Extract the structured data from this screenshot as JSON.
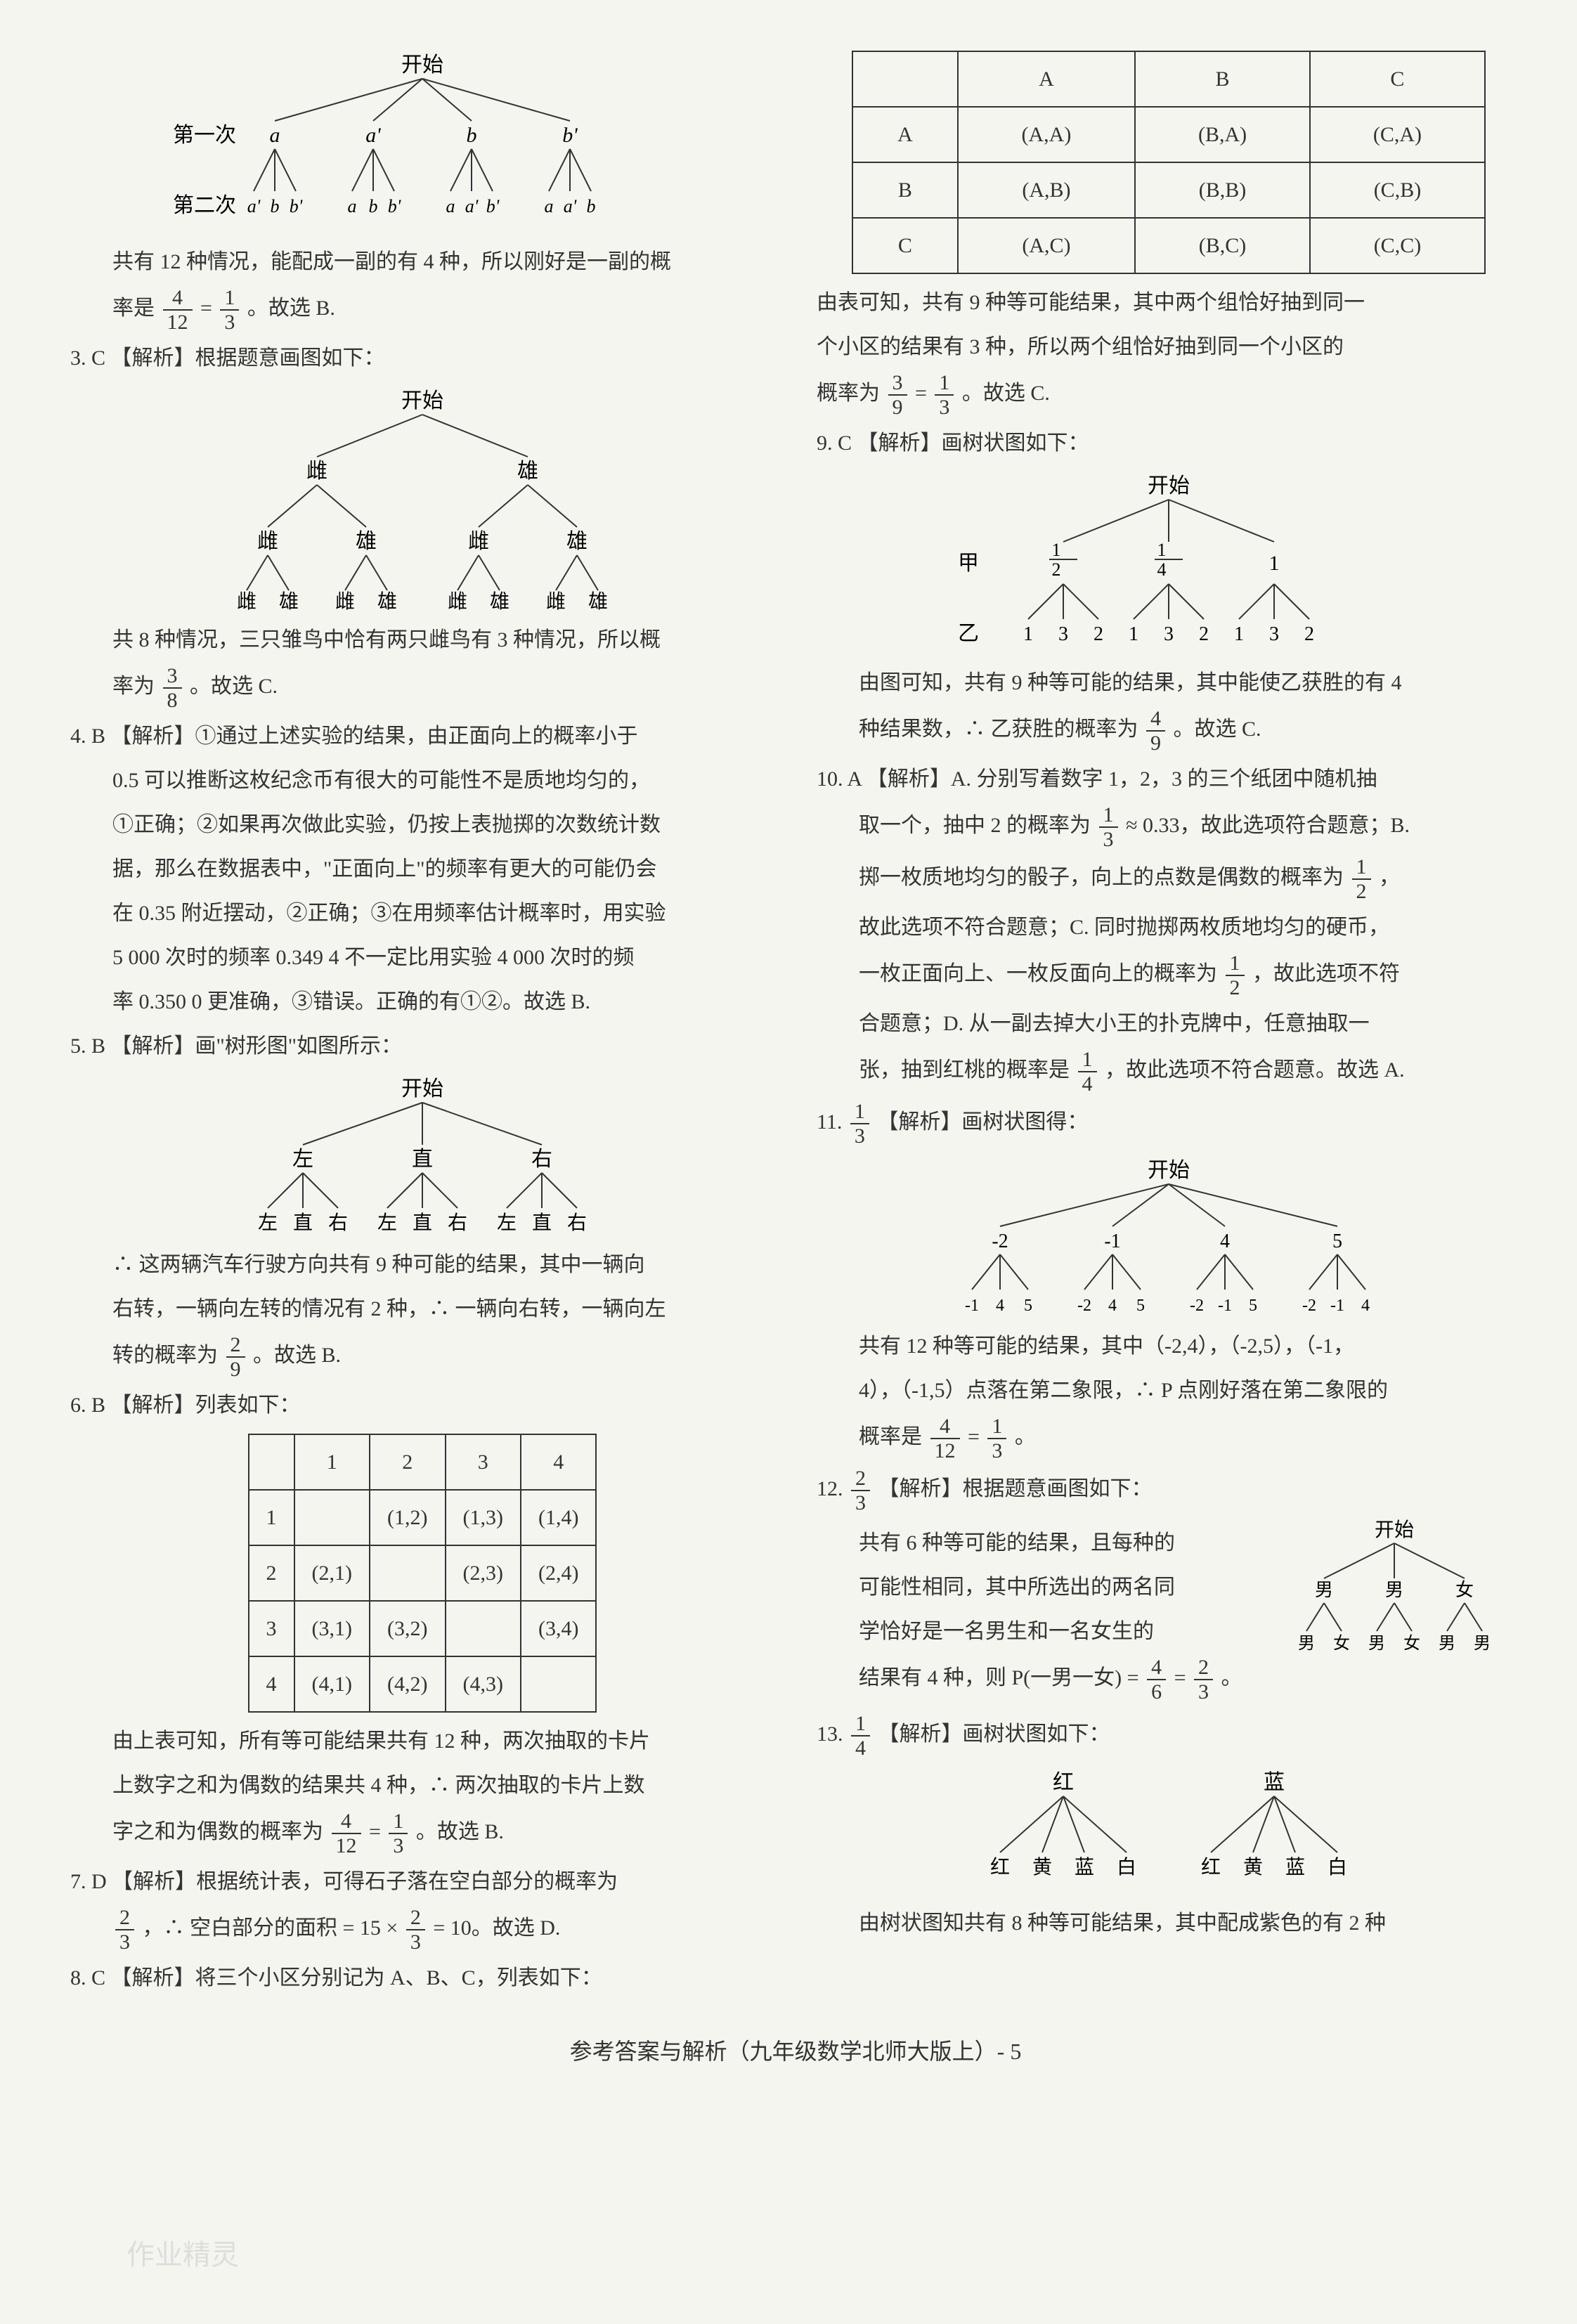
{
  "left": {
    "tree1": {
      "root": "开始",
      "row_label1": "第一次",
      "row_label2": "第二次",
      "level1": [
        "a",
        "a'",
        "b",
        "b'"
      ],
      "level2_groups": [
        [
          "a'",
          "b",
          "b'"
        ],
        [
          "a",
          "b",
          "b'"
        ],
        [
          "a",
          "a'",
          "b'"
        ],
        [
          "a",
          "a'",
          "b"
        ]
      ],
      "summary1": "共有 12 种情况，能配成一副的有 4 种，所以刚好是一副的概",
      "summary2_pre": "率是",
      "frac1": {
        "num": "4",
        "den": "12"
      },
      "eq": "=",
      "frac2": {
        "num": "1",
        "den": "3"
      },
      "summary2_post": "。故选 B."
    },
    "q3": {
      "head": "3. C 【解析】根据题意画图如下：",
      "root": "开始",
      "l1": [
        "雌",
        "雄"
      ],
      "l2": [
        "雌",
        "雄",
        "雌",
        "雄"
      ],
      "l3": [
        "雌",
        "雄",
        "雌",
        "雄",
        "雌",
        "雄",
        "雌",
        "雄"
      ],
      "sum_pre": "共 8 种情况，三只雏鸟中恰有两只雌鸟有 3 种情况，所以概",
      "sum2_pre": "率为",
      "frac": {
        "num": "3",
        "den": "8"
      },
      "sum2_post": "。故选 C."
    },
    "q4": {
      "head": "4. B 【解析】①通过上述实验的结果，由正面向上的概率小于",
      "l1": "0.5 可以推断这枚纪念币有很大的可能性不是质地均匀的，",
      "l2": "①正确；②如果再次做此实验，仍按上表抛掷的次数统计数",
      "l3": "据，那么在数据表中，\"正面向上\"的频率有更大的可能仍会",
      "l4": "在 0.35 附近摆动，②正确；③在用频率估计概率时，用实验",
      "l5": "5 000 次时的频率 0.349 4 不一定比用实验 4 000 次时的频",
      "l6": "率 0.350 0 更准确，③错误。正确的有①②。故选 B."
    },
    "q5": {
      "head": "5. B 【解析】画\"树形图\"如图所示：",
      "root": "开始",
      "l1": [
        "左",
        "直",
        "右"
      ],
      "l2": [
        "左",
        "直",
        "右",
        "左",
        "直",
        "右",
        "左",
        "直",
        "右"
      ],
      "sum1": "∴ 这两辆汽车行驶方向共有 9 种可能的结果，其中一辆向",
      "sum2": "右转，一辆向左转的情况有 2 种，∴ 一辆向右转，一辆向左",
      "sum3_pre": "转的概率为",
      "frac": {
        "num": "2",
        "den": "9"
      },
      "sum3_post": "。故选 B."
    },
    "q6": {
      "head": "6. B 【解析】列表如下：",
      "headers": [
        "",
        "1",
        "2",
        "3",
        "4"
      ],
      "rows": [
        [
          "1",
          "",
          "(1,2)",
          "(1,3)",
          "(1,4)"
        ],
        [
          "2",
          "(2,1)",
          "",
          "(2,3)",
          "(2,4)"
        ],
        [
          "3",
          "(3,1)",
          "(3,2)",
          "",
          "(3,4)"
        ],
        [
          "4",
          "(4,1)",
          "(4,2)",
          "(4,3)",
          ""
        ]
      ],
      "sum1": "由上表可知，所有等可能结果共有 12 种，两次抽取的卡片",
      "sum2": "上数字之和为偶数的结果共 4 种，∴ 两次抽取的卡片上数",
      "sum3_pre": "字之和为偶数的概率为",
      "f1": {
        "num": "4",
        "den": "12"
      },
      "eq": "=",
      "f2": {
        "num": "1",
        "den": "3"
      },
      "sum3_post": "。故选 B."
    },
    "q7": {
      "head": "7. D 【解析】根据统计表，可得石子落在空白部分的概率为",
      "f": {
        "num": "2",
        "den": "3"
      },
      "rest": "，∴ 空白部分的面积 = 15 ×",
      "f2": {
        "num": "2",
        "den": "3"
      },
      "rest2": " = 10。故选 D."
    },
    "q8": {
      "head": "8. C 【解析】将三个小区分别记为 A、B、C，列表如下："
    }
  },
  "right": {
    "tbl": {
      "headers": [
        "",
        "A",
        "B",
        "C"
      ],
      "rows": [
        [
          "A",
          "(A,A)",
          "(B,A)",
          "(C,A)"
        ],
        [
          "B",
          "(A,B)",
          "(B,B)",
          "(C,B)"
        ],
        [
          "C",
          "(A,C)",
          "(B,C)",
          "(C,C)"
        ]
      ]
    },
    "tbl_sum1": "由表可知，共有 9 种等可能结果，其中两个组恰好抽到同一",
    "tbl_sum2": "个小区的结果有 3 种，所以两个组恰好抽到同一个小区的",
    "tbl_sum3_pre": "概率为",
    "tbl_f1": {
      "num": "3",
      "den": "9"
    },
    "tbl_eq": "=",
    "tbl_f2": {
      "num": "1",
      "den": "3"
    },
    "tbl_sum3_post": "。故选 C.",
    "q9": {
      "head": "9. C 【解析】画树状图如下：",
      "root": "开始",
      "label_jia": "甲",
      "l1": [
        "1/2",
        "1/4",
        "1"
      ],
      "label_yi": "乙",
      "l2": [
        "1",
        "3",
        "2",
        "1",
        "3",
        "2",
        "1",
        "3",
        "2"
      ],
      "sum1": "由图可知，共有 9 种等可能的结果，其中能使乙获胜的有 4",
      "sum2_pre": "种结果数，∴ 乙获胜的概率为",
      "f": {
        "num": "4",
        "den": "9"
      },
      "sum2_post": "。故选 C."
    },
    "q10": {
      "head": "10. A 【解析】A. 分别写着数字 1，2，3 的三个纸团中随机抽",
      "l1_pre": "取一个，抽中 2 的概率为",
      "f1": {
        "num": "1",
        "den": "3"
      },
      "l1_mid": " ≈ 0.33，故此选项符合题意；B.",
      "l2_pre": "掷一枚质地均匀的骰子，向上的点数是偶数的概率为",
      "f2": {
        "num": "1",
        "den": "2"
      },
      "l2_post": "，",
      "l3": "故此选项不符合题意；C. 同时抛掷两枚质地均匀的硬币，",
      "l4_pre": "一枚正面向上、一枚反面向上的概率为",
      "f4": {
        "num": "1",
        "den": "2"
      },
      "l4_post": "，故此选项不符",
      "l5": "合题意；D. 从一副去掉大小王的扑克牌中，任意抽取一",
      "l6_pre": "张，抽到红桃的概率是",
      "f6": {
        "num": "1",
        "den": "4"
      },
      "l6_post": "，故此选项不符合题意。故选 A."
    },
    "q11": {
      "ans_f": {
        "num": "1",
        "den": "3"
      },
      "head": "11. ",
      "head2": " 【解析】画树状图得：",
      "root": "开始",
      "l1": [
        "-2",
        "-1",
        "4",
        "5"
      ],
      "l2": [
        "-1",
        "4",
        "5",
        "-2",
        "4",
        "5",
        "-2",
        "-1",
        "5",
        "-2",
        "-1",
        "4"
      ],
      "sum1": "共有 12 种等可能的结果，其中（-2,4），（-2,5），（-1，",
      "sum2": "4），（-1,5）点落在第二象限，∴ P 点刚好落在第二象限的",
      "sum3_pre": "概率是",
      "f1": {
        "num": "4",
        "den": "12"
      },
      "eq": "=",
      "f2": {
        "num": "1",
        "den": "3"
      },
      "sum3_post": "。"
    },
    "q12": {
      "ans_f": {
        "num": "2",
        "den": "3"
      },
      "head": "12. ",
      "head2": " 【解析】根据题意画图如下：",
      "root": "开始",
      "l1": [
        "男",
        "男",
        "女"
      ],
      "l2": [
        "男",
        "女",
        "男",
        "女",
        "男",
        "男"
      ],
      "sum1": "共有 6 种等可能的结果，且每种的",
      "sum2": "可能性相同，其中所选出的两名同",
      "sum3": "学恰好是一名男生和一名女生的",
      "sum4_pre": "结果有 4 种，则 P(一男一女) =",
      "f1": {
        "num": "4",
        "den": "6"
      },
      "eq": "=",
      "f2": {
        "num": "2",
        "den": "3"
      },
      "sum4_post": "。"
    },
    "q13": {
      "ans_f": {
        "num": "1",
        "den": "4"
      },
      "head": "13. ",
      "head2": " 【解析】画树状图如下：",
      "l1": [
        "红",
        "蓝"
      ],
      "l2": [
        "红",
        "黄",
        "蓝",
        "白",
        "红",
        "黄",
        "蓝",
        "白"
      ],
      "sum": "由树状图知共有 8 种等可能结果，其中配成紫色的有 2 种"
    }
  },
  "footer": "参考答案与解析（九年级数学北师大版上）- 5",
  "watermark": "作业精灵",
  "colors": {
    "text": "#333333",
    "border": "#333333",
    "bg": "#f5f5f0",
    "watermark": "#dddddd"
  }
}
